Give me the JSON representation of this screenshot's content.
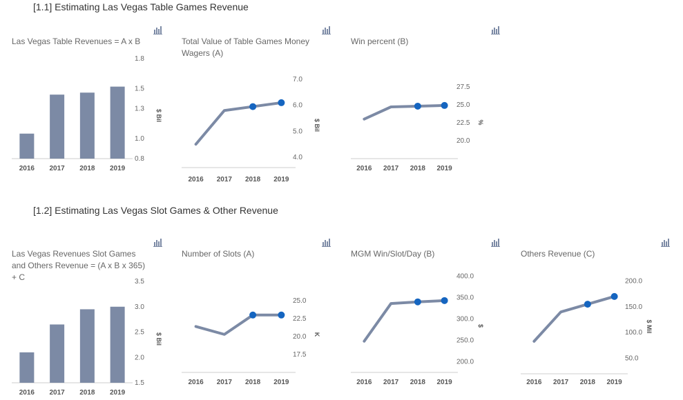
{
  "sections": [
    {
      "title": "[1.1] Estimating Las Vegas Table Games Revenue"
    },
    {
      "title": "[1.2] Estimating Las Vegas Slot Games & Other Revenue"
    }
  ],
  "colors": {
    "bar": "#7c8aa5",
    "line": "#7c8aa5",
    "marker": "#1565c0",
    "axis": "#cccccc"
  },
  "icon": "bar-chart-icon",
  "chart_data": [
    {
      "type": "bar",
      "title": "Las Vegas Table Revenues = A x B",
      "categories": [
        "2016",
        "2017",
        "2018",
        "2019"
      ],
      "values": [
        1.05,
        1.44,
        1.46,
        1.52
      ],
      "ylabel": "$ Bil",
      "ylim": [
        0.8,
        1.8
      ],
      "yticks": [
        "1.8",
        "1.5",
        "1.3",
        "1.0",
        "0.8"
      ],
      "ytick_values": [
        1.8,
        1.5,
        1.3,
        1.0,
        0.8
      ]
    },
    {
      "type": "line",
      "title": "Total Value of Table Games Money Wagers (A)",
      "categories": [
        "2016",
        "2017",
        "2018",
        "2019"
      ],
      "values": [
        4.5,
        5.8,
        5.95,
        6.1
      ],
      "markers": [
        2,
        3
      ],
      "ylabel": "$ Bil",
      "ylim": [
        3.6,
        7.4
      ],
      "yticks": [
        "7.0",
        "6.0",
        "5.0",
        "4.0"
      ],
      "ytick_values": [
        7.0,
        6.0,
        5.0,
        4.0
      ]
    },
    {
      "type": "line",
      "title": "Win percent (B)",
      "categories": [
        "2016",
        "2017",
        "2018",
        "2019"
      ],
      "values": [
        23.0,
        24.7,
        24.8,
        24.9
      ],
      "markers": [
        2,
        3
      ],
      "ylabel": "%",
      "ylim": [
        17.5,
        29.5
      ],
      "yticks": [
        "27.5",
        "25.0",
        "22.5",
        "20.0"
      ],
      "ytick_values": [
        27.5,
        25.0,
        22.5,
        20.0
      ]
    },
    {
      "type": "bar",
      "title": "Las Vegas Revenues Slot Games and Others Revenue = (A x B x 365) + C",
      "categories": [
        "2016",
        "2017",
        "2018",
        "2019"
      ],
      "values": [
        2.1,
        2.65,
        2.95,
        3.0
      ],
      "ylabel": "$ Bil",
      "ylim": [
        1.5,
        3.5
      ],
      "yticks": [
        "3.5",
        "3.0",
        "2.5",
        "2.0",
        "1.5"
      ],
      "ytick_values": [
        3.5,
        3.0,
        2.5,
        2.0,
        1.5
      ]
    },
    {
      "type": "line",
      "title": "Number of Slots (A)",
      "categories": [
        "2016",
        "2017",
        "2018",
        "2019"
      ],
      "values": [
        21.4,
        20.3,
        23.0,
        23.0
      ],
      "markers": [
        2,
        3
      ],
      "ylabel": "K",
      "ylim": [
        15.0,
        27.5
      ],
      "yticks": [
        "25.0",
        "22.5",
        "20.0",
        "17.5"
      ],
      "ytick_values": [
        25.0,
        22.5,
        20.0,
        17.5
      ]
    },
    {
      "type": "line",
      "title": "MGM Win/Slot/Day (B)",
      "categories": [
        "2016",
        "2017",
        "2018",
        "2019"
      ],
      "values": [
        248,
        336,
        340,
        343
      ],
      "markers": [
        2,
        3
      ],
      "ylabel": "$",
      "ylim": [
        175,
        425
      ],
      "yticks": [
        "400.0",
        "350.0",
        "300.0",
        "250.0",
        "200.0"
      ],
      "ytick_values": [
        400,
        350,
        300,
        250,
        200
      ]
    },
    {
      "type": "line",
      "title": "Others Revenue (C)",
      "categories": [
        "2016",
        "2017",
        "2018",
        "2019"
      ],
      "values": [
        83,
        140,
        155,
        170
      ],
      "markers": [
        2,
        3
      ],
      "ylabel": "$ Mil",
      "ylim": [
        20,
        230
      ],
      "yticks": [
        "200.0",
        "150.0",
        "100.0",
        "50.0"
      ],
      "ytick_values": [
        200,
        150,
        100,
        50
      ]
    }
  ]
}
